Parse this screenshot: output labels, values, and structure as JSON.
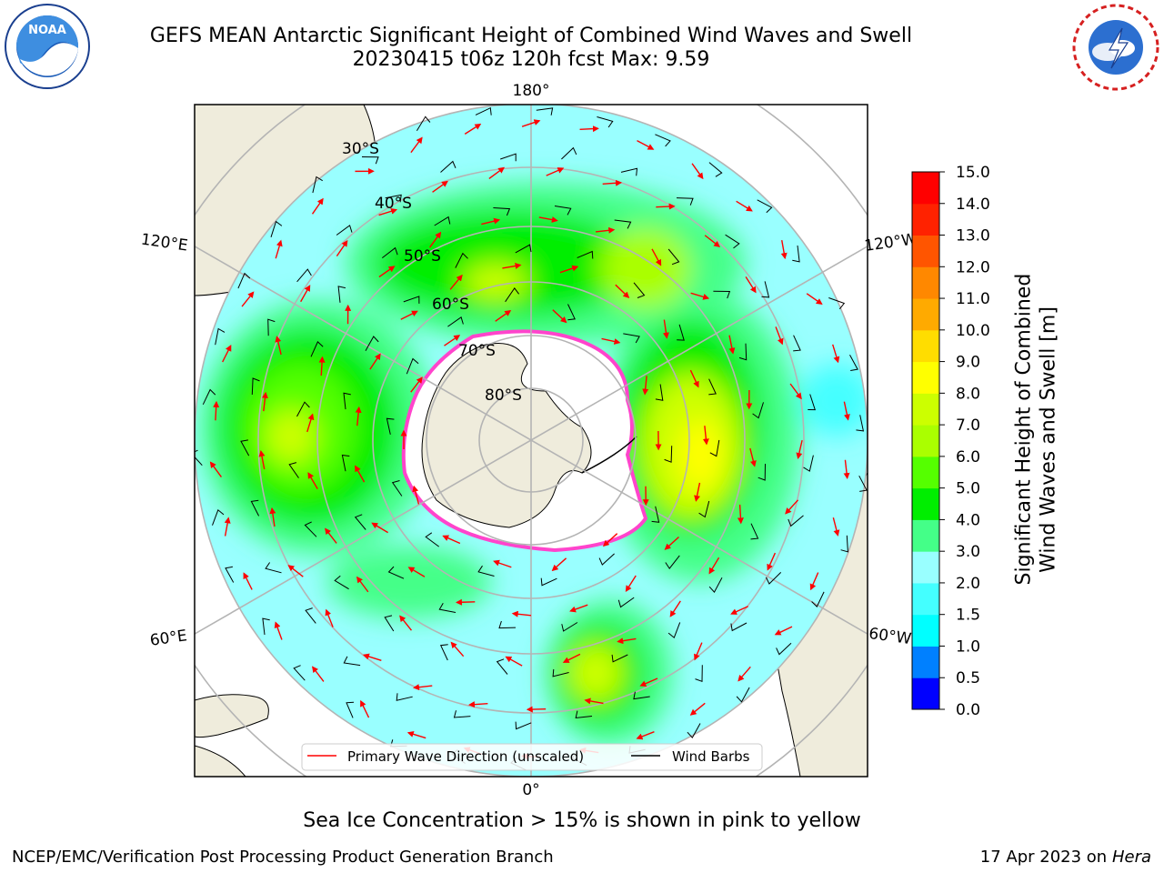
{
  "title": {
    "line1": "GEFS MEAN Antarctic Significant Height of Combined Wind Waves and Swell",
    "line2": "20230415 t06z 120h fcst   Max: 9.59"
  },
  "caption": "Sea Ice Concentration > 15% is shown in pink to yellow",
  "footer": {
    "left": "NCEP/EMC/Verification Post Processing Product Generation Branch",
    "right_date": "17 Apr 2023 on ",
    "right_machine": "Hera"
  },
  "logos": {
    "noaa": {
      "text": "NOAA",
      "ring": "NATIONAL OCEANIC AND ATMOSPHERIC ADMINISTRATION · U.S. DEPARTMENT OF COMMERCE"
    },
    "nws": {
      "ring": "NATIONAL WEATHER SERVICE"
    }
  },
  "map": {
    "projection": "south-polar-stereographic",
    "longitude_labels": [
      "180°",
      "120°E",
      "120°W",
      "60°E",
      "60°W",
      "0°"
    ],
    "latitude_labels": [
      "30°S",
      "40°S",
      "50°S",
      "60°S",
      "70°S",
      "80°S"
    ],
    "colors": {
      "land": "#efecdc",
      "ice": "#ffffff",
      "grid": "#b4b4b4",
      "coast": "#000000",
      "arrow": "#ff0000",
      "ice_edge": "#ff44cc"
    }
  },
  "legend": {
    "items": [
      {
        "label": "Primary Wave Direction (unscaled)",
        "color": "#ff0000"
      },
      {
        "label": "Wind Barbs",
        "color": "#000000"
      }
    ]
  },
  "colorbar": {
    "title_line1": "Significant Height of Combined",
    "title_line2": "Wind Waves and Swell [m]",
    "ticks": [
      "0.0",
      "0.5",
      "1.0",
      "1.5",
      "2.0",
      "3.0",
      "4.0",
      "5.0",
      "6.0",
      "7.0",
      "8.0",
      "9.0",
      "10.0",
      "11.0",
      "12.0",
      "13.0",
      "14.0",
      "15.0"
    ],
    "colors": [
      "#0000ff",
      "#0080ff",
      "#00ffff",
      "#44ffff",
      "#99ffff",
      "#44ff88",
      "#00ee00",
      "#55ff00",
      "#aaff00",
      "#ccff00",
      "#ffff00",
      "#ffdd00",
      "#ffaa00",
      "#ff8800",
      "#ff5500",
      "#ff2200",
      "#ff0000"
    ]
  }
}
